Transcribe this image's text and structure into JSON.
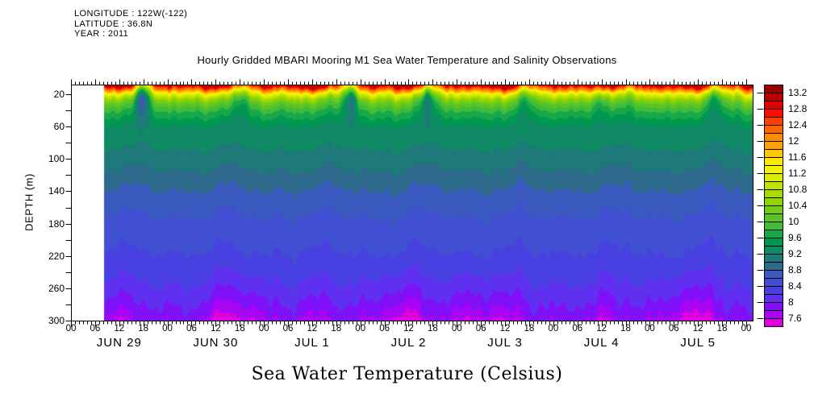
{
  "header": {
    "longitude": "LONGITUDE : 122W(-122)",
    "latitude": "LATITUDE : 36.8N",
    "year": "YEAR : 2011"
  },
  "title": "Hourly Gridded MBARI Mooring M1 Sea Water Temperature and Salinity Observations",
  "caption": "Sea Water Temperature (Celsius)",
  "chart_data": {
    "type": "heatmap",
    "title": "Hourly Gridded MBARI Mooring M1 Sea Water Temperature and Salinity Observations",
    "caption": "Sea Water Temperature (Celsius)",
    "ylabel": "DEPTH (m)",
    "y_tick_labels": [
      "20",
      "60",
      "100",
      "140",
      "180",
      "220",
      "260",
      "300"
    ],
    "y_tick_values": [
      20,
      60,
      100,
      140,
      180,
      220,
      260,
      300
    ],
    "y_minor_step_m": 20,
    "depth_range_m": [
      8,
      300
    ],
    "hour_span": [
      0,
      168
    ],
    "hour_tick_step": 6,
    "minor_tick_step_hours": 1,
    "hour_tick_cycle": [
      "00",
      "06",
      "12",
      "18"
    ],
    "day_labels": [
      "JUN 29",
      "JUN 30",
      "JUL 1",
      "JUL 2",
      "JUL 3",
      "JUL 4",
      "JUL 5"
    ],
    "data_start_hour": 8.2,
    "grid": false,
    "colorbar": {
      "tick_labels": [
        "13.2",
        "12.8",
        "12.4",
        "12",
        "11.6",
        "11.2",
        "10.8",
        "10.4",
        "10",
        "9.6",
        "9.2",
        "8.8",
        "8.4",
        "8",
        "7.6"
      ],
      "level_min": 7.6,
      "level_max": 13.4,
      "level_step": 0.2,
      "palette_high_to_low": [
        "#980000",
        "#B80000",
        "#E00000",
        "#FF0C00",
        "#FF4000",
        "#FF6400",
        "#FF8C00",
        "#FFA000",
        "#FFC800",
        "#FFE800",
        "#F0F400",
        "#D8EC00",
        "#C0E400",
        "#A8DC00",
        "#90D400",
        "#74CC14",
        "#58C428",
        "#40BC38",
        "#18A848",
        "#009850",
        "#0F8A64",
        "#1E7A78",
        "#2D6A8C",
        "#3A5AC0",
        "#4150D2",
        "#4840E0",
        "#6030F0",
        "#7F10F8",
        "#A804F4",
        "#DC00DC"
      ]
    },
    "field_model": {
      "profile_depth_c": [
        [
          8,
          13.0
        ],
        [
          10,
          12.6
        ],
        [
          12,
          12.3
        ],
        [
          14,
          12.0
        ],
        [
          17,
          11.55
        ],
        [
          20,
          11.2
        ],
        [
          24,
          10.8
        ],
        [
          28,
          10.5
        ],
        [
          33,
          10.25
        ],
        [
          40,
          10.0
        ],
        [
          50,
          9.75
        ],
        [
          60,
          9.55
        ],
        [
          80,
          9.45
        ],
        [
          100,
          9.3
        ],
        [
          125,
          9.1
        ],
        [
          150,
          8.9
        ],
        [
          180,
          8.75
        ],
        [
          210,
          8.62
        ],
        [
          240,
          8.48
        ],
        [
          265,
          8.33
        ],
        [
          285,
          8.15
        ],
        [
          300,
          8.0
        ],
        [
          340,
          7.5
        ]
      ],
      "surface_warm": {
        "sigma_m": 7,
        "offset": 0.25,
        "diurnal_amp": 0.5,
        "noise_amp": 0.25,
        "diurnal_phase_hour": 8
      },
      "cold_spikes": [
        [
          17.6,
          2.0
        ],
        [
          42.5,
          0.7
        ],
        [
          69.6,
          1.8
        ],
        [
          88.5,
          1.3
        ],
        [
          113,
          0.6
        ],
        [
          131,
          0.8
        ],
        [
          160,
          0.8
        ]
      ],
      "bottom_cold_event_hours": [
        43,
        80,
        100,
        152
      ],
      "wave": {
        "amp_base_m": 4,
        "amp_per_m": 0.055
      }
    }
  }
}
